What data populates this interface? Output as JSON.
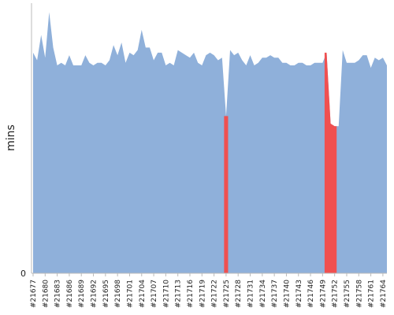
{
  "chart_data": {
    "type": "area",
    "title": "",
    "xlabel": "",
    "ylabel": "mins",
    "ylim": [
      0,
      100
    ],
    "y_ticks": [
      0
    ],
    "grid": false,
    "legend": "none",
    "colors": {
      "normal": "#8fb0da",
      "failed": "#f05050",
      "axis": "#bbbbbb",
      "text": "#222222"
    },
    "x_tick_labels": [
      "#21677",
      "#21680",
      "#21683",
      "#21686",
      "#21689",
      "#21692",
      "#21695",
      "#21698",
      "#21701",
      "#21704",
      "#21707",
      "#21710",
      "#21713",
      "#21716",
      "#21719",
      "#21722",
      "#21725",
      "#21728",
      "#21731",
      "#21734",
      "#21737",
      "#21740",
      "#21743",
      "#21746",
      "#21749",
      "#21752",
      "#21755",
      "#21758",
      "#21761",
      "#21764"
    ],
    "x_start": 21677,
    "values": [
      87,
      84,
      94,
      85,
      103,
      89,
      82,
      83,
      82,
      86,
      82,
      82,
      82,
      86,
      83,
      82,
      83,
      83,
      82,
      84,
      90,
      86,
      91,
      83,
      87,
      86,
      88,
      96,
      89,
      89,
      84,
      87,
      87,
      82,
      83,
      82,
      88,
      87,
      86,
      85,
      87,
      83,
      82,
      86,
      87,
      86,
      84,
      85,
      62,
      88,
      86,
      87,
      84,
      82,
      86,
      82,
      83,
      85,
      85,
      86,
      85,
      85,
      83,
      83,
      82,
      82,
      83,
      83,
      82,
      82,
      83,
      83,
      83,
      87,
      59,
      58,
      58,
      88,
      83,
      83,
      83,
      84,
      86,
      86,
      81,
      85,
      84,
      85,
      82
    ],
    "failed_points": [
      48,
      73,
      74,
      75
    ]
  }
}
